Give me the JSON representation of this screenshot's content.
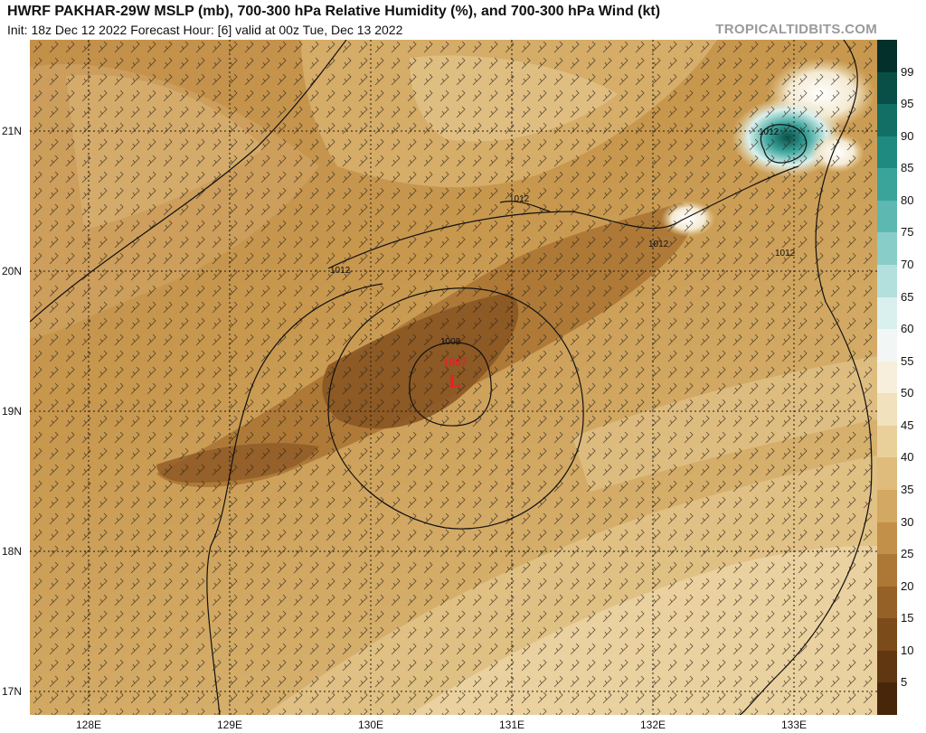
{
  "header": {
    "title": "HWRF PAKHAR-29W MSLP (mb), 700-300 hPa Relative Humidity (%), and 700-300 hPa Wind (kt)",
    "subtitle": "Init: 18z Dec 12 2022   Forecast Hour: [6]   valid at 00z Tue, Dec 13 2022",
    "brand": "TROPICALTIDBITS.COM"
  },
  "map": {
    "lat_labels": [
      "21N",
      "20N",
      "19N",
      "18N",
      "17N"
    ],
    "lon_labels": [
      "128E",
      "129E",
      "130E",
      "131E",
      "132E",
      "133E"
    ],
    "low_center": {
      "pressure": "1007",
      "symbol": "L",
      "color": "#e8202a"
    },
    "isobar_labels": [
      "1008",
      "1012",
      "1012",
      "1012",
      "1012",
      "1012"
    ]
  },
  "colorbar": {
    "ticks": [
      "99",
      "95",
      "90",
      "85",
      "80",
      "75",
      "70",
      "65",
      "60",
      "55",
      "50",
      "45",
      "40",
      "35",
      "30",
      "25",
      "20",
      "15",
      "10",
      "5"
    ],
    "colors": [
      "#04302b",
      "#0a4f47",
      "#116f65",
      "#1f8a80",
      "#3aa39a",
      "#5cb8b1",
      "#88cdc7",
      "#b3e0dc",
      "#d9f0ee",
      "#f2f6f5",
      "#f7efdc",
      "#f1e1bc",
      "#e9d09b",
      "#dfbc7c",
      "#d3a862",
      "#c3904a",
      "#ad7836",
      "#956127",
      "#7b4b1a",
      "#603711",
      "#48260a"
    ]
  }
}
